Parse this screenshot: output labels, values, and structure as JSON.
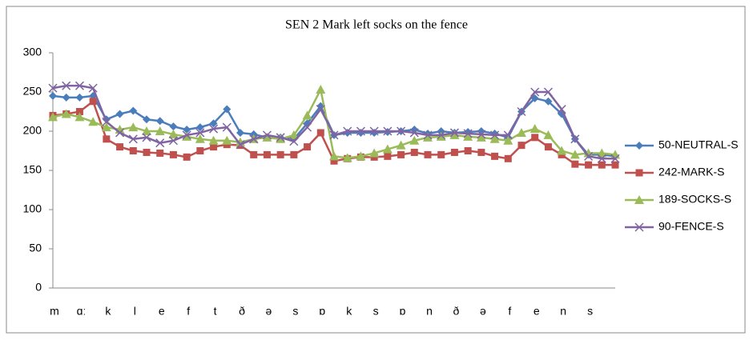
{
  "chart_data": {
    "type": "line",
    "title": "SEN 2 Mark left socks on the fence",
    "categories": [
      "m",
      null,
      "ɑː",
      null,
      "k",
      null,
      "l",
      null,
      "e",
      null,
      "f",
      null,
      "t",
      null,
      "ð",
      null,
      "ə",
      null,
      "s",
      null,
      "ɒ",
      null,
      "k",
      null,
      "s",
      null,
      "ɒ",
      null,
      "n",
      null,
      "ð",
      null,
      "ə",
      null,
      "f",
      null,
      "e",
      null,
      "n",
      null,
      "s",
      null,
      null
    ],
    "ylim": [
      0,
      300
    ],
    "yticks": [
      0,
      50,
      100,
      150,
      200,
      250,
      300
    ],
    "grid": false,
    "legend": "right",
    "series": [
      {
        "name": "50-NEUTRAL-S",
        "color": "#4a7ebb",
        "marker": "diamond",
        "values": [
          245,
          243,
          243,
          245,
          215,
          222,
          226,
          215,
          213,
          206,
          202,
          205,
          210,
          228,
          198,
          196,
          192,
          192,
          190,
          210,
          232,
          195,
          198,
          198,
          198,
          199,
          200,
          202,
          197,
          200,
          198,
          199,
          200,
          197,
          192,
          225,
          242,
          238,
          222,
          190,
          170,
          170,
          168
        ]
      },
      {
        "name": "242-MARK-S",
        "color": "#c0504d",
        "marker": "square",
        "values": [
          220,
          222,
          225,
          238,
          190,
          180,
          175,
          173,
          172,
          170,
          167,
          175,
          180,
          183,
          182,
          170,
          170,
          170,
          170,
          180,
          198,
          162,
          165,
          167,
          167,
          168,
          170,
          173,
          170,
          170,
          173,
          175,
          173,
          168,
          165,
          182,
          192,
          180,
          170,
          158,
          157,
          157,
          157
        ]
      },
      {
        "name": "189-SOCKS-S",
        "color": "#9bbb59",
        "marker": "triangle",
        "values": [
          218,
          222,
          218,
          212,
          205,
          202,
          205,
          200,
          200,
          196,
          193,
          190,
          188,
          188,
          186,
          190,
          192,
          190,
          195,
          220,
          253,
          168,
          166,
          168,
          172,
          177,
          182,
          188,
          192,
          193,
          195,
          193,
          192,
          190,
          188,
          198,
          203,
          195,
          175,
          170,
          172,
          172,
          170
        ]
      },
      {
        "name": "90-FENCE-S",
        "color": "#8064a2",
        "marker": "x",
        "values": [
          255,
          258,
          258,
          255,
          212,
          198,
          190,
          192,
          185,
          188,
          195,
          198,
          203,
          205,
          183,
          190,
          195,
          192,
          187,
          205,
          228,
          195,
          200,
          200,
          200,
          200,
          200,
          198,
          195,
          195,
          198,
          197,
          196,
          195,
          195,
          225,
          250,
          250,
          228,
          190,
          168,
          165,
          165
        ]
      }
    ]
  }
}
